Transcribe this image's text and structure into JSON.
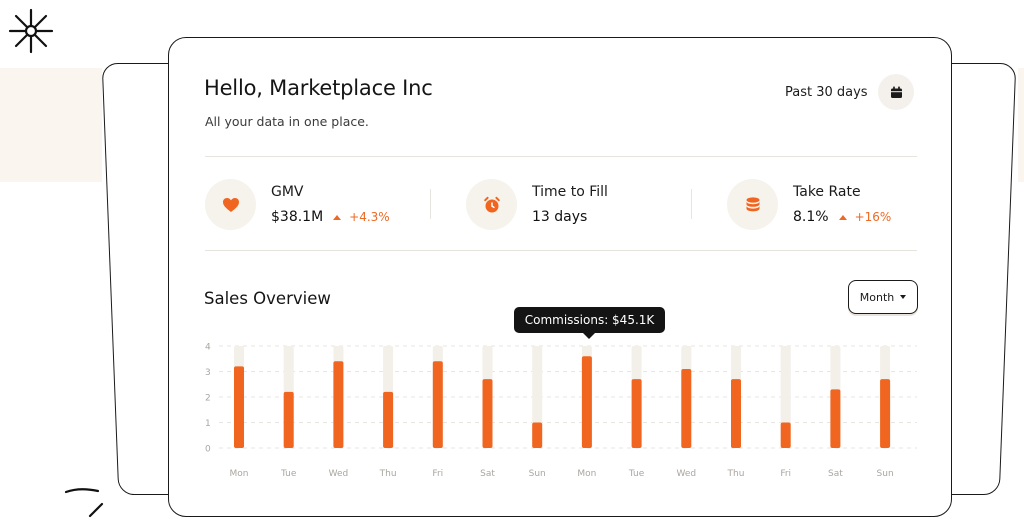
{
  "header": {
    "greeting": "Hello, Marketplace Inc",
    "subtitle": "All your data in one place.",
    "period": "Past 30 days"
  },
  "stats": [
    {
      "label": "GMV",
      "value": "$38.1M",
      "trend": "+4.3%",
      "icon": "heart-icon"
    },
    {
      "label": "Time to Fill",
      "value": "13 days",
      "icon": "alarm-clock-icon"
    },
    {
      "label": "Take Rate",
      "value": "8.1%",
      "trend": "+16%",
      "icon": "coins-stack-icon"
    }
  ],
  "sales": {
    "title": "Sales Overview",
    "range_selector": "Month",
    "tooltip": "Commissions: $45.1K"
  },
  "colors": {
    "accent": "#f0651f",
    "track": "#f3efe9",
    "icon_bg": "#f6f2ec"
  },
  "chart_data": {
    "type": "bar",
    "categories": [
      "Mon",
      "Tue",
      "Wed",
      "Thu",
      "Fri",
      "Sat",
      "Sun",
      "Mon",
      "Tue",
      "Wed",
      "Thu",
      "Fri",
      "Sat",
      "Sun"
    ],
    "values": [
      3.2,
      2.2,
      3.4,
      2.2,
      3.4,
      2.7,
      1.0,
      3.6,
      2.7,
      3.1,
      2.7,
      1.0,
      2.3,
      2.7
    ],
    "yticks": [
      0,
      1,
      2,
      3,
      4
    ],
    "ylim": [
      0,
      4
    ],
    "grid": true,
    "highlighted_index": 7
  }
}
